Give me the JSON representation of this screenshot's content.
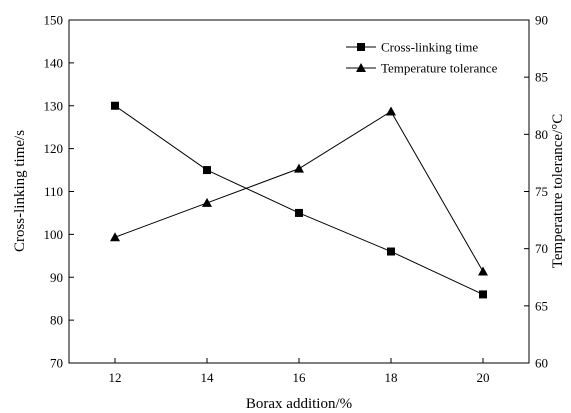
{
  "chart_data": {
    "type": "line",
    "title": "",
    "xlabel": "Borax addition/%",
    "ylabel": "Cross-linking time/s",
    "y2label": "Temperature tolerance/°C",
    "xlim": [
      11,
      21
    ],
    "ylim": [
      70,
      150
    ],
    "y2lim": [
      60,
      90
    ],
    "x_ticks": [
      12,
      14,
      16,
      18,
      20
    ],
    "y_ticks": [
      70,
      80,
      90,
      100,
      110,
      120,
      130,
      140,
      150
    ],
    "y2_ticks": [
      60,
      65,
      70,
      75,
      80,
      85,
      90
    ],
    "grid": false,
    "legend_position": "top-right",
    "series": [
      {
        "name": "Cross-linking time",
        "axis": "left",
        "marker": "square",
        "x": [
          12,
          14,
          16,
          18,
          20
        ],
        "values": [
          130,
          115,
          105,
          96,
          86
        ]
      },
      {
        "name": "Temperature tolerance",
        "axis": "right",
        "marker": "triangle",
        "x": [
          12,
          14,
          16,
          18,
          20
        ],
        "values": [
          71,
          74,
          77,
          82,
          68
        ]
      }
    ]
  }
}
